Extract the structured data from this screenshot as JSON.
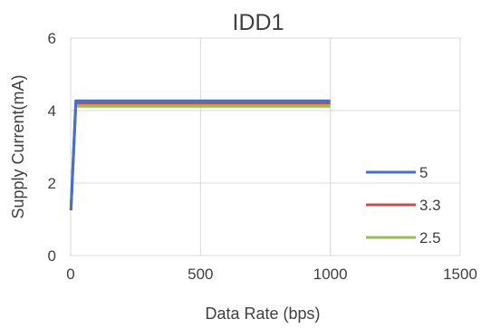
{
  "chart_data": {
    "type": "line",
    "title": "IDD1",
    "xlabel": "Data Rate (bps)",
    "ylabel": "Supply Current(mA)",
    "xlim": [
      0,
      1500
    ],
    "ylim": [
      0,
      6
    ],
    "x_ticks": [
      "0",
      "500",
      "1000",
      "1500"
    ],
    "y_ticks": [
      "0",
      "2",
      "4",
      "6"
    ],
    "grid": true,
    "legend_position": "right",
    "series": [
      {
        "name": "5",
        "color": "#4472C4",
        "x": [
          1,
          20,
          1000
        ],
        "y": [
          1.25,
          4.27,
          4.27
        ]
      },
      {
        "name": "3.3",
        "color": "#C0504D",
        "x": [
          1,
          20,
          1000
        ],
        "y": [
          1.25,
          4.2,
          4.2
        ]
      },
      {
        "name": "2.5",
        "color": "#9BBB59",
        "x": [
          1,
          20,
          1000
        ],
        "y": [
          1.25,
          4.12,
          4.12
        ]
      }
    ]
  }
}
